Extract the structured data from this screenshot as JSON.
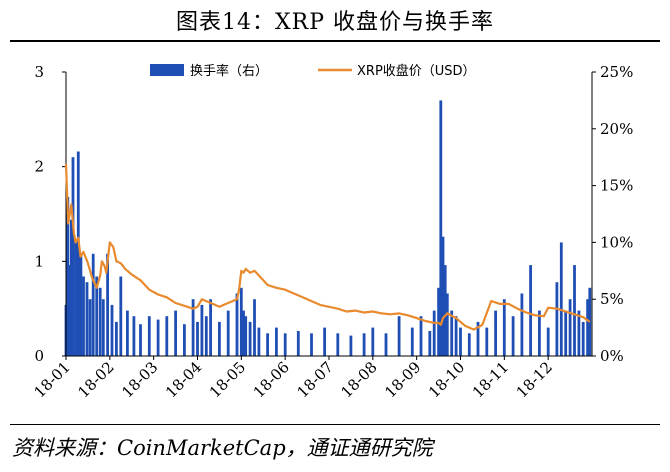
{
  "title": "图表14：XRP 收盘价与换手率",
  "source": "资料来源：CoinMarketCap，通证通研究院",
  "colors": {
    "turnover": "#1f4fb5",
    "price": "#e88a2d",
    "axis": "#000000"
  },
  "chart_data": {
    "type": "bar",
    "combo": "bar + line (dual axis)",
    "x_tick_labels": [
      "18-01",
      "18-02",
      "18-03",
      "18-04",
      "18-05",
      "18-06",
      "18-07",
      "18-08",
      "18-09",
      "18-10",
      "18-11",
      "18-12"
    ],
    "x_range_months": [
      0,
      12
    ],
    "left_axis": {
      "ticks": [
        "0",
        "1",
        "2",
        "3"
      ],
      "range": [
        0,
        3
      ]
    },
    "right_axis": {
      "ticks": [
        "0%",
        "5%",
        "10%",
        "15%",
        "20%",
        "25%"
      ],
      "range": [
        0,
        25
      ]
    },
    "legend": {
      "placement": "top",
      "turnover_label": "换手率（右）",
      "price_label": "XRP收盘价（USD）"
    },
    "grid": false,
    "series": [
      {
        "name": "换手率（右）",
        "type": "bar",
        "axis": "right",
        "unit": "%",
        "x_month": [
          0.0,
          0.04,
          0.08,
          0.12,
          0.16,
          0.22,
          0.28,
          0.34,
          0.4,
          0.48,
          0.55,
          0.62,
          0.7,
          0.78,
          0.85,
          0.95,
          1.05,
          1.15,
          1.25,
          1.4,
          1.55,
          1.7,
          1.9,
          2.1,
          2.3,
          2.5,
          2.7,
          2.9,
          3.0,
          3.1,
          3.2,
          3.3,
          3.5,
          3.7,
          3.9,
          4.0,
          4.05,
          4.1,
          4.2,
          4.3,
          4.4,
          4.6,
          4.8,
          5.0,
          5.3,
          5.6,
          5.9,
          6.2,
          6.5,
          6.8,
          7.0,
          7.3,
          7.6,
          7.9,
          8.1,
          8.3,
          8.4,
          8.5,
          8.55,
          8.6,
          8.65,
          8.7,
          8.8,
          8.9,
          9.0,
          9.2,
          9.4,
          9.6,
          9.8,
          10.0,
          10.2,
          10.4,
          10.6,
          10.8,
          11.0,
          11.2,
          11.3,
          11.4,
          11.5,
          11.6,
          11.7,
          11.8,
          11.9,
          11.95
        ],
        "values": [
          4.5,
          14.0,
          8.0,
          12.0,
          17.5,
          10.0,
          18.0,
          9.0,
          7.0,
          6.5,
          5.0,
          9.0,
          7.0,
          6.0,
          5.0,
          9.0,
          4.5,
          3.0,
          7.0,
          4.0,
          3.5,
          2.8,
          3.5,
          3.2,
          3.5,
          4.0,
          2.8,
          5.0,
          3.0,
          4.5,
          3.5,
          5.0,
          3.0,
          4.0,
          5.5,
          6.0,
          4.0,
          3.5,
          3.0,
          5.0,
          2.5,
          2.0,
          2.5,
          2.0,
          2.2,
          2.0,
          2.5,
          2.0,
          1.8,
          2.0,
          2.5,
          2.0,
          3.5,
          2.5,
          3.5,
          2.2,
          4.0,
          6.0,
          22.5,
          10.5,
          8.0,
          5.5,
          4.0,
          3.5,
          2.5,
          2.0,
          3.0,
          2.5,
          4.0,
          5.0,
          3.5,
          5.5,
          8.0,
          4.0,
          2.5,
          6.5,
          10.0,
          4.0,
          5.0,
          8.0,
          4.0,
          3.0,
          5.0,
          6.0
        ]
      },
      {
        "name": "XRP收盘价（USD）",
        "type": "line",
        "axis": "left",
        "unit": "USD",
        "x_month": [
          0.0,
          0.05,
          0.12,
          0.18,
          0.22,
          0.28,
          0.33,
          0.4,
          0.5,
          0.6,
          0.7,
          0.78,
          0.82,
          0.88,
          0.92,
          1.0,
          1.08,
          1.15,
          1.25,
          1.35,
          1.5,
          1.7,
          1.9,
          2.1,
          2.3,
          2.5,
          2.7,
          2.9,
          3.0,
          3.1,
          3.2,
          3.35,
          3.5,
          3.65,
          3.8,
          3.9,
          3.95,
          4.0,
          4.05,
          4.1,
          4.2,
          4.3,
          4.4,
          4.5,
          4.6,
          4.8,
          5.0,
          5.2,
          5.4,
          5.6,
          5.8,
          6.0,
          6.2,
          6.4,
          6.6,
          6.8,
          7.0,
          7.2,
          7.4,
          7.6,
          7.8,
          8.0,
          8.2,
          8.4,
          8.5,
          8.55,
          8.6,
          8.7,
          8.9,
          9.1,
          9.3,
          9.5,
          9.7,
          9.9,
          10.1,
          10.3,
          10.5,
          10.7,
          10.9,
          11.0,
          11.2,
          11.4,
          11.6,
          11.8,
          11.95
        ],
        "values": [
          2.03,
          1.4,
          1.6,
          1.3,
          1.2,
          1.25,
          1.05,
          1.1,
          0.98,
          0.82,
          0.72,
          0.85,
          1.0,
          0.95,
          0.88,
          1.2,
          1.15,
          1.0,
          0.98,
          0.92,
          0.86,
          0.8,
          0.7,
          0.65,
          0.62,
          0.56,
          0.53,
          0.5,
          0.52,
          0.6,
          0.58,
          0.55,
          0.52,
          0.55,
          0.58,
          0.6,
          0.7,
          0.9,
          0.88,
          0.92,
          0.88,
          0.9,
          0.85,
          0.8,
          0.75,
          0.72,
          0.7,
          0.66,
          0.62,
          0.58,
          0.54,
          0.52,
          0.5,
          0.47,
          0.48,
          0.46,
          0.47,
          0.45,
          0.44,
          0.45,
          0.43,
          0.4,
          0.37,
          0.35,
          0.35,
          0.33,
          0.4,
          0.45,
          0.4,
          0.32,
          0.28,
          0.33,
          0.58,
          0.55,
          0.55,
          0.5,
          0.46,
          0.43,
          0.42,
          0.51,
          0.5,
          0.47,
          0.44,
          0.41,
          0.36
        ]
      }
    ]
  }
}
